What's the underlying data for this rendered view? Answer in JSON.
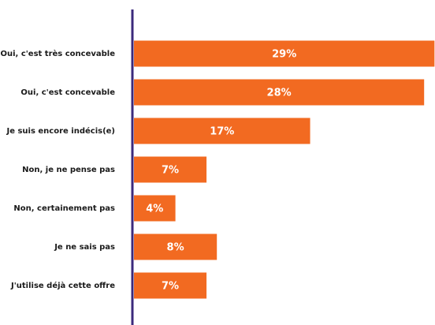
{
  "chart_data": {
    "type": "bar",
    "orientation": "horizontal",
    "categories": [
      "Oui, c'est très concevable",
      "Oui, c'est concevable",
      "Je suis encore indécis(e)",
      "Non, je ne pense pas",
      "Non, certainement pas",
      "Je ne sais pas",
      "J'utilise déjà cette offre"
    ],
    "values": [
      29,
      28,
      17,
      7,
      4,
      8,
      7
    ],
    "value_labels": [
      "29%",
      "28%",
      "17%",
      "7%",
      "4%",
      "8%",
      "7%"
    ],
    "color": "#f26a21"
  }
}
